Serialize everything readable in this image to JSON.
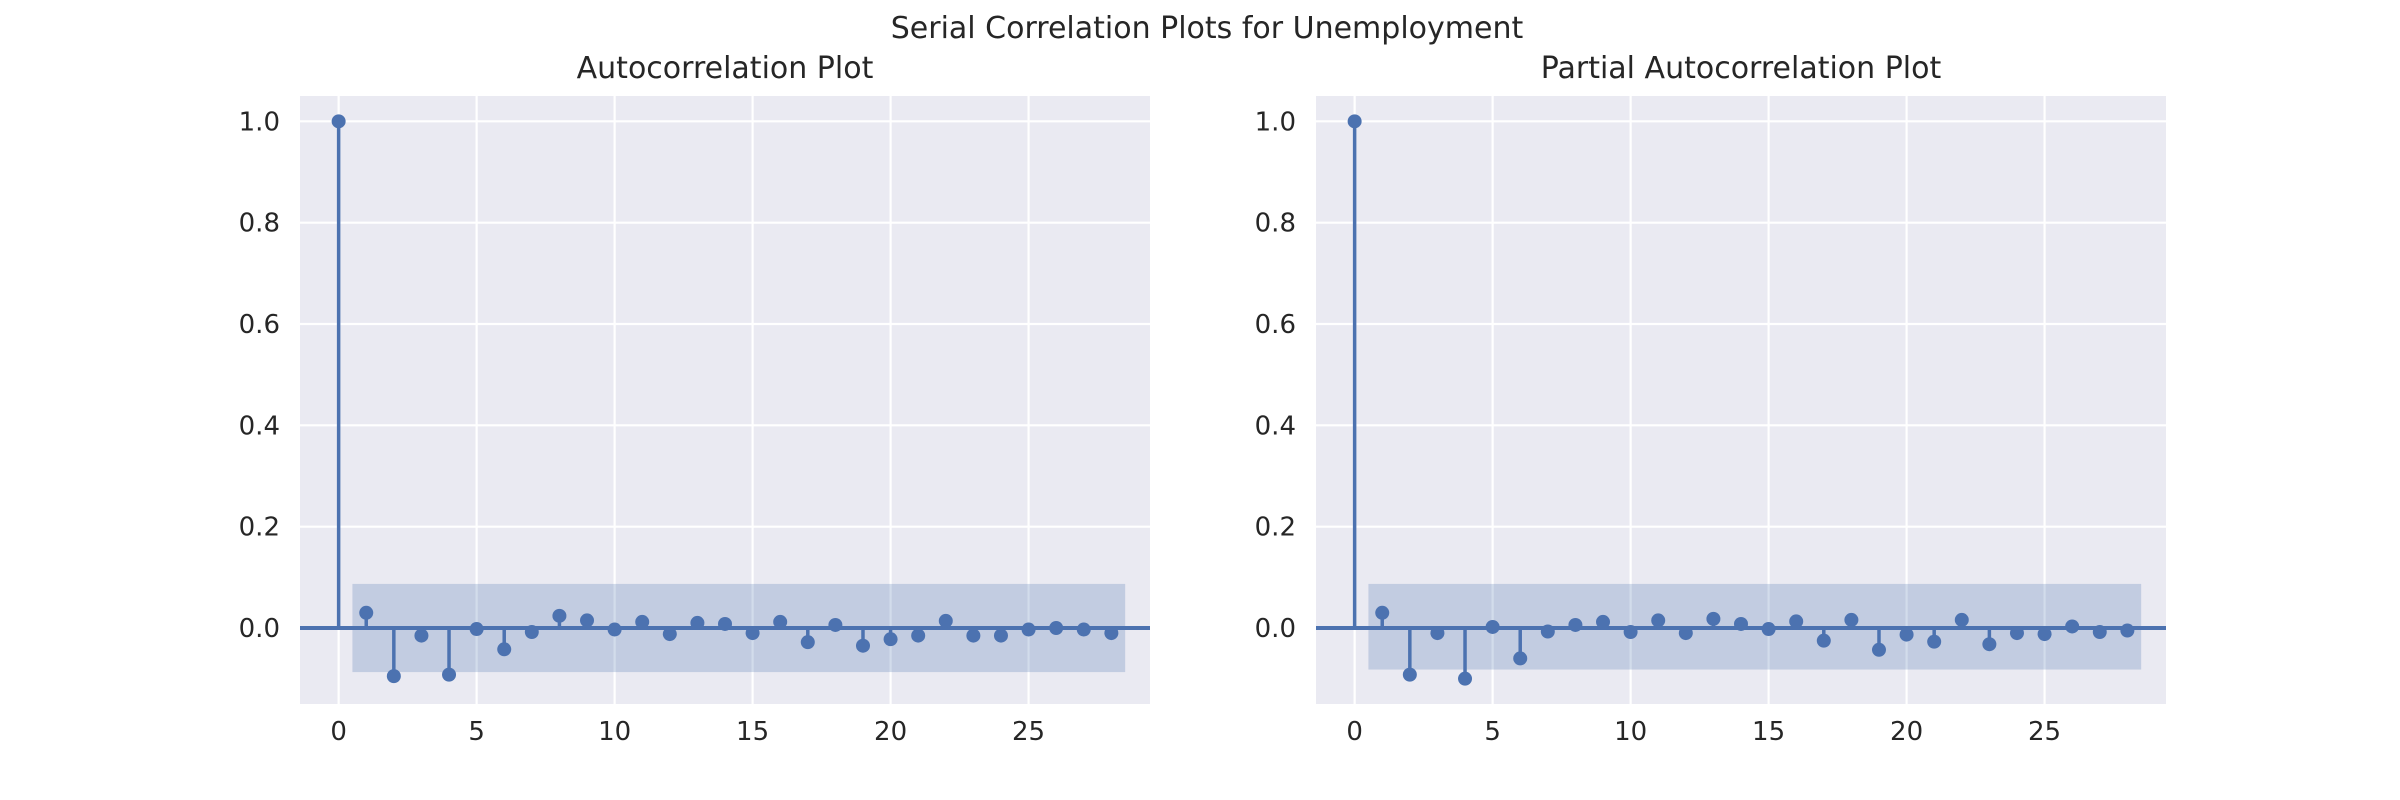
{
  "figure": {
    "suptitle": "Serial Correlation Plots for Unemployment",
    "colors": {
      "background": "#eaeaf2",
      "grid": "#ffffff",
      "stem": "#4c72b0",
      "confidence_band": "#4c72b0"
    }
  },
  "chart_data": [
    {
      "type": "stem",
      "title": "Autocorrelation Plot",
      "xlabel": "",
      "ylabel": "",
      "xlim": [
        -1.4,
        29.4
      ],
      "ylim": [
        -0.15,
        1.05
      ],
      "xticks": [
        0,
        5,
        10,
        15,
        20,
        25
      ],
      "yticks": [
        0.0,
        0.2,
        0.4,
        0.6,
        0.8,
        1.0
      ],
      "ytick_labels": [
        "0.0",
        "0.2",
        "0.4",
        "0.6",
        "0.8",
        "1.0"
      ],
      "grid": true,
      "baseline": 0,
      "confidence_band": {
        "x_start": 0.5,
        "x_end": 28.5,
        "lower": -0.087,
        "upper": 0.087
      },
      "x": [
        0,
        1,
        2,
        3,
        4,
        5,
        6,
        7,
        8,
        9,
        10,
        11,
        12,
        13,
        14,
        15,
        16,
        17,
        18,
        19,
        20,
        21,
        22,
        23,
        24,
        25,
        26,
        27,
        28
      ],
      "values": [
        1.0,
        0.03,
        -0.095,
        -0.015,
        -0.092,
        -0.002,
        -0.042,
        -0.008,
        0.024,
        0.015,
        -0.003,
        0.012,
        -0.012,
        0.01,
        0.008,
        -0.01,
        0.012,
        -0.028,
        0.006,
        -0.035,
        -0.022,
        -0.015,
        0.014,
        -0.015,
        -0.015,
        -0.003,
        0.0,
        -0.003,
        -0.01
      ]
    },
    {
      "type": "stem",
      "title": "Partial Autocorrelation Plot",
      "xlabel": "",
      "ylabel": "",
      "xlim": [
        -1.4,
        29.4
      ],
      "ylim": [
        -0.15,
        1.05
      ],
      "xticks": [
        0,
        5,
        10,
        15,
        20,
        25
      ],
      "yticks": [
        0.0,
        0.2,
        0.4,
        0.6,
        0.8,
        1.0
      ],
      "ytick_labels": [
        "0.0",
        "0.2",
        "0.4",
        "0.6",
        "0.8",
        "1.0"
      ],
      "grid": true,
      "baseline": 0,
      "confidence_band": {
        "x_start": 0.5,
        "x_end": 28.5,
        "lower": -0.082,
        "upper": 0.087
      },
      "x": [
        0,
        1,
        2,
        3,
        4,
        5,
        6,
        7,
        8,
        9,
        10,
        11,
        12,
        13,
        14,
        15,
        16,
        17,
        18,
        19,
        20,
        21,
        22,
        23,
        24,
        25,
        26,
        27,
        28
      ],
      "values": [
        1.0,
        0.03,
        -0.092,
        -0.01,
        -0.1,
        0.002,
        -0.06,
        -0.007,
        0.006,
        0.012,
        -0.008,
        0.015,
        -0.01,
        0.018,
        0.008,
        -0.002,
        0.013,
        -0.025,
        0.016,
        -0.043,
        -0.013,
        -0.027,
        0.016,
        -0.032,
        -0.01,
        -0.012,
        0.003,
        -0.008,
        -0.005
      ]
    }
  ]
}
